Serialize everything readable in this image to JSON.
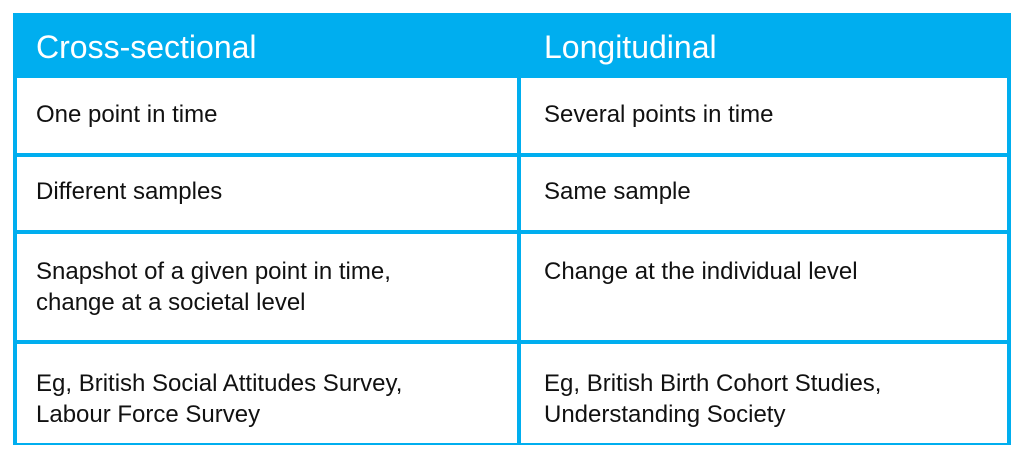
{
  "header": {
    "left": "Cross-sectional",
    "right": "Longitudinal"
  },
  "rows": [
    {
      "left": "One point in time",
      "right": "Several points in time"
    },
    {
      "left": "Different samples",
      "right": "Same sample"
    },
    {
      "left": "Snapshot of a given point in time,\nchange at a societal level",
      "right": "Change at the individual level"
    },
    {
      "left": "Eg, British Social Attitudes Survey,\nLabour Force Survey",
      "right": "Eg, British Birth Cohort Studies,\nUnderstanding Society"
    }
  ],
  "colors": {
    "accent": "#00aeef",
    "text": "#111111",
    "header_text": "#ffffff"
  }
}
